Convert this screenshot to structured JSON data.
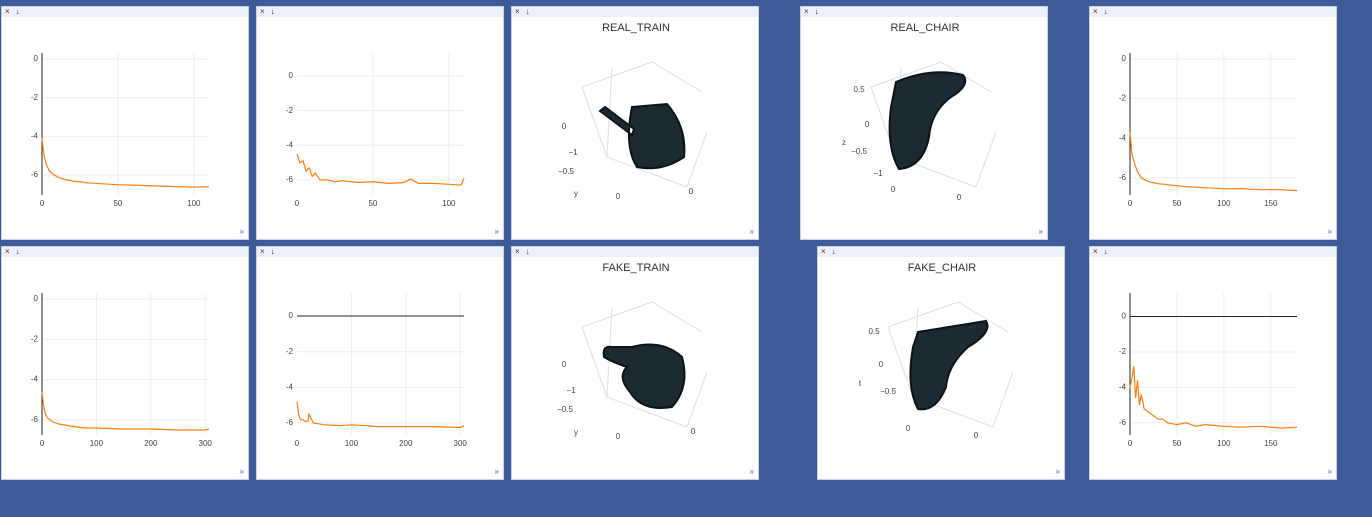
{
  "controls": {
    "close": "×",
    "download": "↓",
    "expand": "»"
  },
  "panes": [
    {
      "type": "line",
      "color": "#ff7f0e",
      "zeroline_x": true,
      "zeroline_y": false,
      "grid": true,
      "xlim": [
        0,
        110
      ],
      "ylim": [
        -7.03,
        0.31
      ],
      "xticks": [
        0,
        50,
        100
      ],
      "yticks": [
        0,
        -2,
        -4,
        -6
      ],
      "x": [
        0,
        1,
        2,
        3,
        5,
        8,
        12,
        16,
        20,
        25,
        30,
        40,
        50,
        60,
        70,
        80,
        90,
        100,
        110
      ],
      "values": [
        -4.1,
        -4.8,
        -5.2,
        -5.5,
        -5.8,
        -6.0,
        -6.15,
        -6.25,
        -6.3,
        -6.35,
        -6.4,
        -6.45,
        -6.5,
        -6.52,
        -6.55,
        -6.57,
        -6.6,
        -6.62,
        -6.6
      ]
    },
    {
      "type": "line",
      "color": "#ff7f0e",
      "zeroline_x": false,
      "zeroline_y": false,
      "grid": true,
      "xlim": [
        0,
        110
      ],
      "ylim": [
        -6.87,
        1.33
      ],
      "xticks": [
        0,
        50,
        100
      ],
      "yticks": [
        0,
        -2,
        -4,
        -6
      ],
      "x": [
        0,
        2,
        4,
        6,
        8,
        10,
        12,
        15,
        20,
        25,
        30,
        40,
        50,
        60,
        70,
        75,
        80,
        90,
        100,
        108,
        110
      ],
      "values": [
        -4.5,
        -5.0,
        -4.9,
        -5.5,
        -5.3,
        -5.8,
        -5.6,
        -6.0,
        -6.0,
        -6.1,
        -6.05,
        -6.15,
        -6.1,
        -6.2,
        -6.15,
        -5.95,
        -6.2,
        -6.2,
        -6.25,
        -6.3,
        -5.9
      ]
    },
    {
      "type": "scatter3d",
      "title": "REAL_TRAIN",
      "axis_labels": [
        "0",
        "−1",
        "−0.5",
        "y",
        "0",
        "0"
      ]
    },
    {
      "type": "scatter3d",
      "title": "REAL_CHAIR",
      "axis_labels": [
        "0.5",
        "0",
        "z",
        "−0.5",
        "−1",
        "0",
        "0"
      ]
    },
    {
      "type": "line",
      "color": "#ff7f0e",
      "zeroline_x": true,
      "zeroline_y": false,
      "grid": true,
      "xlim": [
        0,
        178
      ],
      "ylim": [
        -6.87,
        0.3
      ],
      "xticks": [
        0,
        50,
        100,
        150
      ],
      "yticks": [
        0,
        -2,
        -4,
        -6
      ],
      "x": [
        0,
        2,
        5,
        8,
        12,
        16,
        20,
        30,
        40,
        50,
        60,
        80,
        100,
        120,
        140,
        160,
        178
      ],
      "values": [
        -3.7,
        -4.8,
        -5.3,
        -5.7,
        -6.0,
        -6.1,
        -6.2,
        -6.3,
        -6.35,
        -6.4,
        -6.45,
        -6.5,
        -6.55,
        -6.55,
        -6.6,
        -6.6,
        -6.65
      ]
    },
    {
      "type": "line",
      "color": "#ff7f0e",
      "zeroline_x": true,
      "zeroline_y": false,
      "grid": true,
      "xlim": [
        0,
        307
      ],
      "ylim": [
        -6.75,
        0.3
      ],
      "xticks": [
        0,
        100,
        200,
        300
      ],
      "yticks": [
        0,
        -2,
        -4,
        -6
      ],
      "x": [
        0,
        3,
        6,
        10,
        20,
        30,
        50,
        80,
        100,
        150,
        200,
        250,
        300,
        307
      ],
      "values": [
        -4.6,
        -5.3,
        -5.7,
        -5.9,
        -6.1,
        -6.2,
        -6.3,
        -6.4,
        -6.4,
        -6.45,
        -6.45,
        -6.5,
        -6.5,
        -6.45
      ]
    },
    {
      "type": "line",
      "color": "#ff7f0e",
      "zeroline_x": false,
      "zeroline_y": true,
      "grid": true,
      "xlim": [
        0,
        307
      ],
      "ylim": [
        -6.67,
        1.29
      ],
      "xticks": [
        0,
        100,
        200,
        300
      ],
      "yticks": [
        0,
        -2,
        -4,
        -6
      ],
      "x": [
        0,
        3,
        6,
        10,
        15,
        20,
        22,
        30,
        50,
        80,
        100,
        150,
        200,
        250,
        300,
        307
      ],
      "values": [
        -4.8,
        -5.5,
        -5.8,
        -5.8,
        -5.9,
        -5.9,
        -5.5,
        -6.0,
        -6.1,
        -6.15,
        -6.1,
        -6.2,
        -6.2,
        -6.2,
        -6.25,
        -6.15
      ]
    },
    {
      "type": "scatter3d",
      "title": "FAKE_TRAIN",
      "axis_labels": [
        "0",
        "−1",
        "−0.5",
        "y",
        "0",
        "0"
      ]
    },
    {
      "type": "scatter3d",
      "title": "FAKE_CHAIR",
      "axis_labels": [
        "0.5",
        "0",
        "t",
        "−0.5",
        "0",
        "0"
      ]
    },
    {
      "type": "line",
      "color": "#ff7f0e",
      "zeroline_x": true,
      "zeroline_y": true,
      "grid": true,
      "xlim": [
        0,
        178
      ],
      "ylim": [
        -6.69,
        1.33
      ],
      "xticks": [
        0,
        50,
        100,
        150
      ],
      "yticks": [
        0,
        -2,
        -4,
        -6
      ],
      "x": [
        0,
        2,
        4,
        6,
        8,
        10,
        12,
        15,
        20,
        25,
        30,
        35,
        40,
        50,
        60,
        70,
        80,
        100,
        120,
        140,
        160,
        178
      ],
      "values": [
        -4.0,
        -3.5,
        -2.8,
        -4.6,
        -3.6,
        -5.0,
        -4.4,
        -5.2,
        -5.4,
        -5.6,
        -5.8,
        -5.8,
        -6.0,
        -6.1,
        -6.0,
        -6.2,
        -6.1,
        -6.2,
        -6.25,
        -6.2,
        -6.3,
        -6.25
      ]
    }
  ]
}
